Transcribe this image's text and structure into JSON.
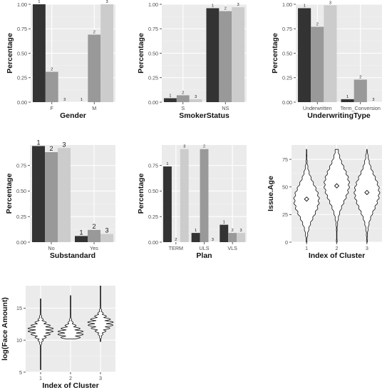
{
  "chart_data": [
    {
      "type": "bar",
      "xlabel": "Gender",
      "ylabel": "Percentage",
      "categories": [
        "F",
        "M"
      ],
      "series": [
        {
          "name": "1",
          "values": [
            1.0,
            0.0
          ]
        },
        {
          "name": "2",
          "values": [
            0.31,
            0.69
          ]
        },
        {
          "name": "3",
          "values": [
            0.0,
            1.0
          ]
        }
      ],
      "ylim": [
        0,
        1.0
      ],
      "yticks": [
        "0.00",
        "0.25",
        "0.50",
        "0.75",
        "1.00"
      ],
      "grid": true
    },
    {
      "type": "bar",
      "xlabel": "SmokerStatus",
      "ylabel": "Percentage",
      "categories": [
        "S",
        "NS"
      ],
      "series": [
        {
          "name": "1",
          "values": [
            0.04,
            0.96
          ]
        },
        {
          "name": "2",
          "values": [
            0.07,
            0.93
          ]
        },
        {
          "name": "3",
          "values": [
            0.03,
            0.97
          ]
        }
      ],
      "ylim": [
        0,
        1.0
      ],
      "yticks": [
        "0.00",
        "0.25",
        "0.50",
        "0.75",
        "1.00"
      ],
      "grid": true
    },
    {
      "type": "bar",
      "xlabel": "UnderwritingType",
      "ylabel": "Percentage",
      "categories": [
        "Underwritten",
        "Term_Conversion"
      ],
      "series": [
        {
          "name": "1",
          "values": [
            0.96,
            0.03
          ]
        },
        {
          "name": "2",
          "values": [
            0.77,
            0.23
          ]
        },
        {
          "name": "3",
          "values": [
            0.99,
            0.0
          ]
        }
      ],
      "ylim": [
        0,
        1.0
      ],
      "yticks": [
        "0.00",
        "0.25",
        "0.50",
        "0.75",
        "1.00"
      ],
      "grid": true
    },
    {
      "type": "bar",
      "xlabel": "Substandard",
      "ylabel": "Percentage",
      "categories": [
        "No",
        "Yes"
      ],
      "series": [
        {
          "name": "1",
          "values": [
            0.94,
            0.06
          ]
        },
        {
          "name": "2",
          "values": [
            0.88,
            0.12
          ]
        },
        {
          "name": "3",
          "values": [
            0.92,
            0.08
          ]
        }
      ],
      "ylim": [
        0,
        0.95
      ],
      "yticks": [
        "0.00",
        "0.25",
        "0.50",
        "0.75"
      ],
      "grid": true
    },
    {
      "type": "bar",
      "xlabel": "Plan",
      "ylabel": "Percentage",
      "categories": [
        "TERM",
        "ULS",
        "VLS"
      ],
      "series": [
        {
          "name": "1",
          "values": [
            0.74,
            0.09,
            0.17
          ]
        },
        {
          "name": "2",
          "values": [
            0.0,
            0.91,
            0.09
          ]
        },
        {
          "name": "3",
          "values": [
            0.91,
            0.0,
            0.09
          ]
        }
      ],
      "ylim": [
        0,
        0.95
      ],
      "yticks": [
        "0.00",
        "0.25",
        "0.50",
        "0.75"
      ],
      "grid": true
    },
    {
      "type": "violin",
      "xlabel": "Index of Cluster",
      "ylabel": "Issue.Age",
      "categories": [
        "1",
        "2",
        "3"
      ],
      "mean": [
        39,
        51,
        45
      ],
      "range": [
        [
          0,
          83
        ],
        [
          0,
          85
        ],
        [
          0,
          82
        ]
      ],
      "ylim": [
        0,
        88
      ],
      "yticks": [
        "0",
        "25",
        "50",
        "75"
      ],
      "grid": true
    },
    {
      "type": "violin",
      "xlabel": "Index of Cluster",
      "ylabel": "log(Face Amount)",
      "categories": [
        "1",
        "2",
        "3"
      ],
      "mode": [
        11.6,
        11.1,
        12.6
      ],
      "range": [
        [
          5.4,
          16.5
        ],
        [
          10.2,
          17.0
        ],
        [
          9.8,
          18.5
        ]
      ],
      "ylim": [
        5,
        18.5
      ],
      "yticks": [
        "5",
        "10",
        "15"
      ],
      "grid": true
    }
  ]
}
